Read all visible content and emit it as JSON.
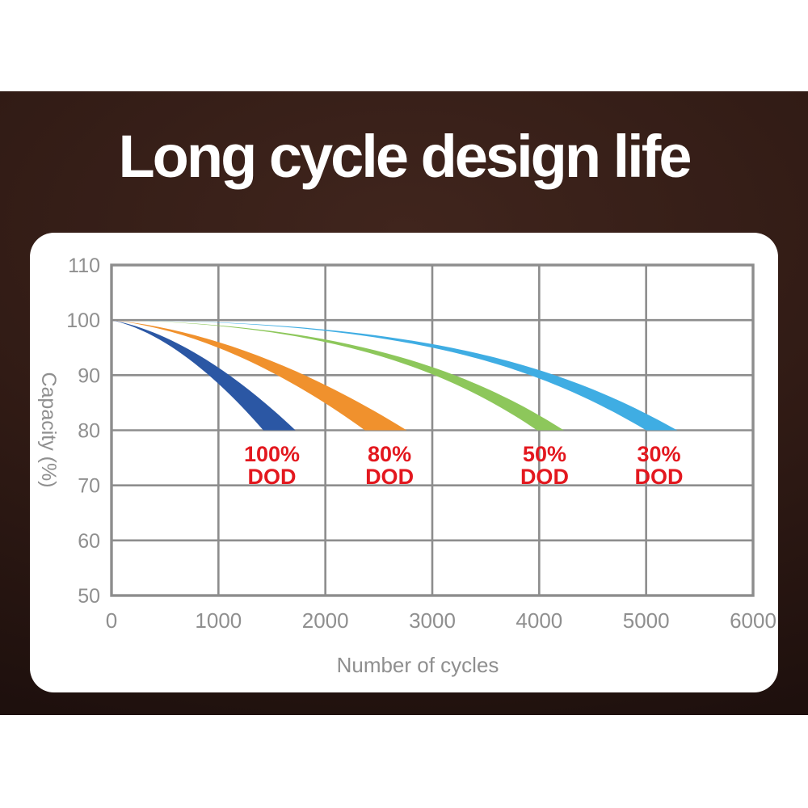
{
  "banner": {
    "title": "Long cycle design life",
    "text_color": "#ffffff",
    "bg_center_color": "#40251d",
    "bg_edge_color": "#190d0b"
  },
  "panel": {
    "bg_color": "#ffffff"
  },
  "chart_data": {
    "type": "area",
    "title": "Long cycle design life",
    "xlabel": "Number of cycles",
    "ylabel": "Capacity (%)",
    "xlim": [
      0,
      6000
    ],
    "ylim": [
      50,
      110
    ],
    "x_ticks": [
      0,
      1000,
      2000,
      3000,
      4000,
      5000,
      6000
    ],
    "y_ticks": [
      110,
      100,
      90,
      80,
      70,
      60,
      50
    ],
    "grid": true,
    "legend_position": "none",
    "gridline_color": "#8d8d8d",
    "tick_text_color": "#8f8f8f",
    "annotation_text_color": "#e3181f",
    "cutoff_capacity_pct": 80,
    "series": [
      {
        "name": "100% DOD",
        "depth_of_discharge_pct": 100,
        "color": "#2b57a4",
        "start": {
          "cycles": 0,
          "capacity_pct": 100
        },
        "cycles_at_80pct_band": [
          1420,
          1720
        ],
        "approx_points": [
          {
            "cycles": 0,
            "capacity_pct": 100
          },
          {
            "cycles": 500,
            "capacity_pct": 96.5
          },
          {
            "cycles": 1000,
            "capacity_pct": 89.5
          },
          {
            "cycles": 1570,
            "capacity_pct": 80
          }
        ],
        "annotation": {
          "line1": "100%",
          "line2": "DOD",
          "at_cycles": 1500
        },
        "curve_controls": {
          "c1": [
            0.35,
            97.8
          ],
          "c2": [
            0.7,
            89.5
          ]
        }
      },
      {
        "name": "80% DOD",
        "depth_of_discharge_pct": 80,
        "color": "#f0912d",
        "start": {
          "cycles": 0,
          "capacity_pct": 100
        },
        "cycles_at_80pct_band": [
          2370,
          2760
        ],
        "approx_points": [
          {
            "cycles": 0,
            "capacity_pct": 100
          },
          {
            "cycles": 1000,
            "capacity_pct": 94.5
          },
          {
            "cycles": 2000,
            "capacity_pct": 88.5
          },
          {
            "cycles": 2560,
            "capacity_pct": 80
          }
        ],
        "annotation": {
          "line1": "80%",
          "line2": "DOD",
          "at_cycles": 2600
        },
        "curve_controls": {
          "c1": [
            0.35,
            98.2
          ],
          "c2": [
            0.7,
            90
          ]
        }
      },
      {
        "name": "50% DOD",
        "depth_of_discharge_pct": 50,
        "color": "#8dc75b",
        "start": {
          "cycles": 0,
          "capacity_pct": 100
        },
        "cycles_at_80pct_band": [
          3980,
          4230
        ],
        "approx_points": [
          {
            "cycles": 0,
            "capacity_pct": 100
          },
          {
            "cycles": 2000,
            "capacity_pct": 94.5
          },
          {
            "cycles": 3000,
            "capacity_pct": 91
          },
          {
            "cycles": 4100,
            "capacity_pct": 80
          }
        ],
        "annotation": {
          "line1": "50%",
          "line2": "DOD",
          "at_cycles": 4050
        },
        "curve_controls": {
          "c1": [
            0.5,
            99.3
          ],
          "c2": [
            0.78,
            91.5
          ]
        }
      },
      {
        "name": "30% DOD",
        "depth_of_discharge_pct": 30,
        "color": "#3fade3",
        "start": {
          "cycles": 0,
          "capacity_pct": 100
        },
        "cycles_at_80pct_band": [
          5000,
          5290
        ],
        "approx_points": [
          {
            "cycles": 0,
            "capacity_pct": 100
          },
          {
            "cycles": 3000,
            "capacity_pct": 96.5
          },
          {
            "cycles": 4000,
            "capacity_pct": 87.5
          },
          {
            "cycles": 5150,
            "capacity_pct": 80
          }
        ],
        "annotation": {
          "line1": "30%",
          "line2": "DOD",
          "at_cycles": 5120
        },
        "curve_controls": {
          "c1": [
            0.56,
            99.8
          ],
          "c2": [
            0.8,
            91.5
          ]
        }
      }
    ]
  }
}
